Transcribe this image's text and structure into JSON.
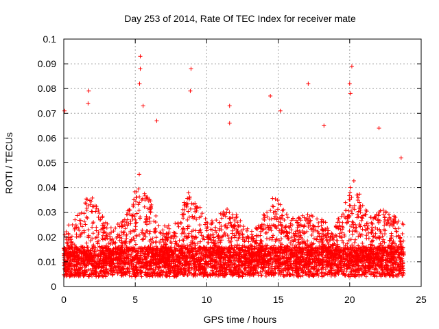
{
  "chart_data": {
    "type": "scatter",
    "title": "Day 253 of 2014, Rate Of TEC Index for receiver mate",
    "xlabel": "GPS time / hours",
    "ylabel": "ROTI / TECUs",
    "xlim": [
      0,
      25
    ],
    "ylim": [
      0,
      0.1
    ],
    "x_ticks": [
      0,
      5,
      10,
      15,
      20,
      25
    ],
    "x_tick_labels": [
      "0",
      "5",
      "10",
      "15",
      "20",
      "25"
    ],
    "y_ticks": [
      0,
      0.01,
      0.02,
      0.03,
      0.04,
      0.05,
      0.06,
      0.07,
      0.08,
      0.09,
      0.1
    ],
    "y_tick_labels": [
      "0",
      "0.01",
      "0.02",
      "0.03",
      "0.04",
      "0.05",
      "0.06",
      "0.07",
      "0.08",
      "0.09",
      "0.1"
    ],
    "grid": true,
    "marker": "plus",
    "color": "#ff0000",
    "series": [
      {
        "name": "receiver mate",
        "x_range_hours": [
          0,
          23.8
        ],
        "peaks": [
          {
            "x": 0.05,
            "y": 0.071
          },
          {
            "x": 1.75,
            "y": 0.079
          },
          {
            "x": 1.7,
            "y": 0.074
          },
          {
            "x": 5.35,
            "y": 0.093
          },
          {
            "x": 5.35,
            "y": 0.088
          },
          {
            "x": 5.3,
            "y": 0.082
          },
          {
            "x": 5.55,
            "y": 0.073
          },
          {
            "x": 6.5,
            "y": 0.067
          },
          {
            "x": 8.9,
            "y": 0.088
          },
          {
            "x": 8.85,
            "y": 0.079
          },
          {
            "x": 11.6,
            "y": 0.073
          },
          {
            "x": 11.6,
            "y": 0.066
          },
          {
            "x": 14.45,
            "y": 0.077
          },
          {
            "x": 15.15,
            "y": 0.071
          },
          {
            "x": 17.1,
            "y": 0.082
          },
          {
            "x": 18.2,
            "y": 0.065
          },
          {
            "x": 20.15,
            "y": 0.089
          },
          {
            "x": 20.0,
            "y": 0.082
          },
          {
            "x": 20.05,
            "y": 0.078
          },
          {
            "x": 22.05,
            "y": 0.064
          },
          {
            "x": 23.6,
            "y": 0.052
          }
        ]
      }
    ]
  }
}
